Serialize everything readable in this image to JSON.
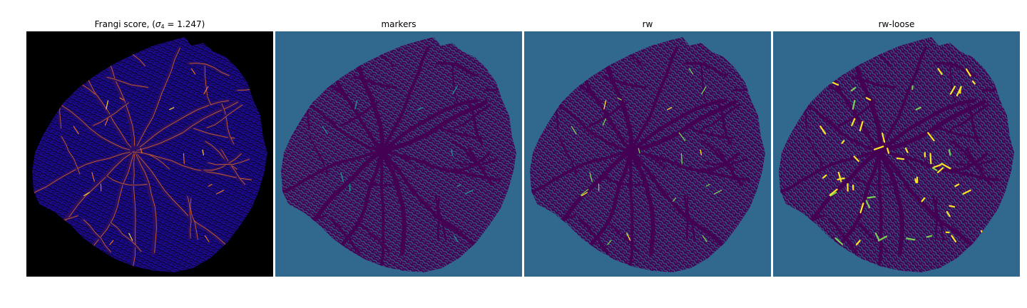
{
  "panels": [
    {
      "title_prefix": "Frangi score, (",
      "title_sigma": "σ",
      "title_sub": "4",
      "title_suffix": " = 1.247)",
      "colormap": "inferno"
    },
    {
      "title": "markers",
      "colormap": "viridis"
    },
    {
      "title": "rw",
      "colormap": "viridis"
    },
    {
      "title": "rw-loose",
      "colormap": "viridis"
    }
  ],
  "colors": {
    "frangi_background": "#000000",
    "frangi_tissue": "#1a0a8c",
    "frangi_vessel": "#2b0f63",
    "frangi_highlight": "#e8702a",
    "frangi_bright": "#f8d040",
    "seg_background": "#31688e",
    "seg_tissue": "#440154",
    "seg_marker": "#21918c",
    "seg_highlight": "#fde725",
    "seg_green": "#7ad151"
  }
}
